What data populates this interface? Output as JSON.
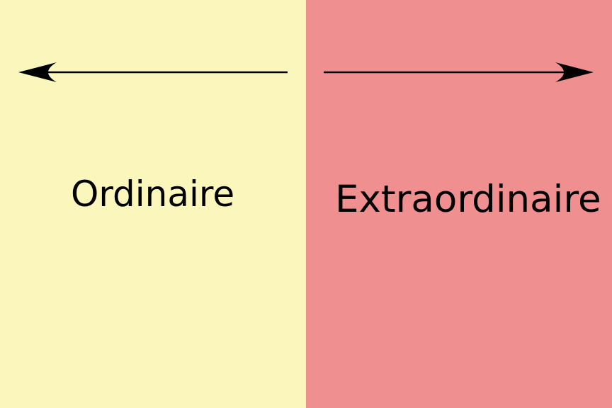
{
  "left": {
    "label": "Ordinaire",
    "color": "#FBF6BC",
    "arrow_direction": "left"
  },
  "right": {
    "label": "Extraordinaire",
    "color": "#EF8F90",
    "arrow_direction": "right"
  },
  "arrow_color": "#000000"
}
